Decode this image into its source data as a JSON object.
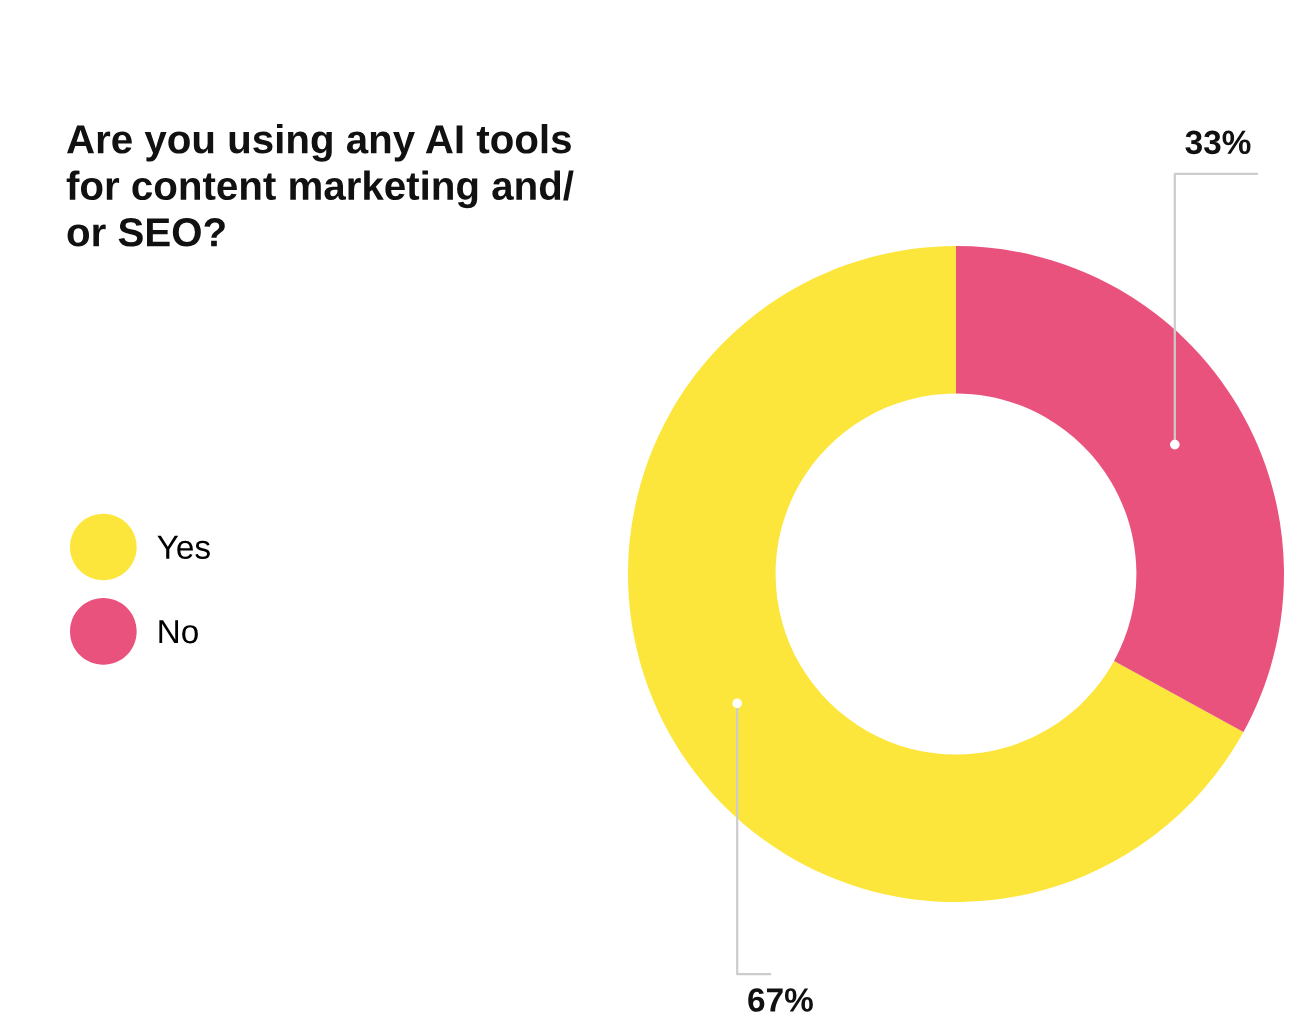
{
  "chart_data": {
    "type": "donut",
    "title": "Are you using any AI tools\nfor content marketing and/\nor SEO?",
    "categories": [
      "Yes",
      "No"
    ],
    "values": [
      67,
      33
    ],
    "colors": [
      "#fde63c",
      "#e9527c"
    ],
    "value_labels": [
      "67%",
      "33%"
    ],
    "legend": "left"
  }
}
